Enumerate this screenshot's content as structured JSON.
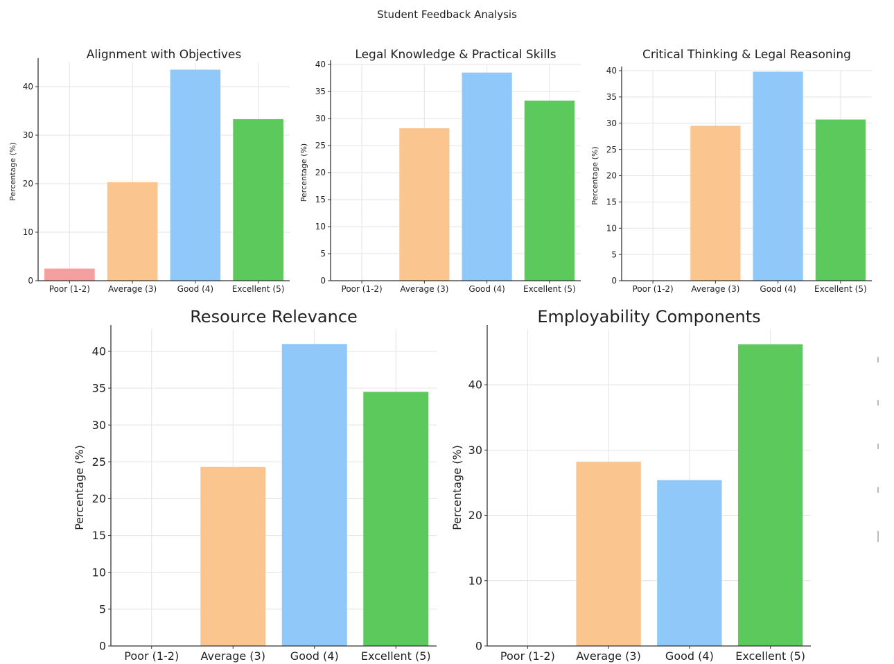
{
  "suptitle": "Student Feedback Analysis",
  "chart_data": [
    {
      "type": "bar",
      "title": "Alignment with Objectives",
      "categories": [
        "Poor (1-2)",
        "Average (3)",
        "Good (4)",
        "Excellent (5)"
      ],
      "values": [
        2.5,
        20.3,
        43.5,
        33.3
      ],
      "xlabel": "",
      "ylabel": "Percentage (%)",
      "ylim": [
        0,
        45
      ],
      "yticks": [
        0,
        10,
        20,
        30,
        40
      ],
      "colors": [
        "#f4a0a0",
        "#fbc58f",
        "#90c8fa",
        "#5cc95c"
      ],
      "grid": true
    },
    {
      "type": "bar",
      "title": "Legal Knowledge & Practical Skills",
      "categories": [
        "Poor (1-2)",
        "Average (3)",
        "Good (4)",
        "Excellent (5)"
      ],
      "values": [
        0,
        28.2,
        38.5,
        33.3
      ],
      "xlabel": "",
      "ylabel": "Percentage (%)",
      "ylim": [
        0,
        40
      ],
      "yticks": [
        0,
        5,
        10,
        15,
        20,
        25,
        30,
        35,
        40
      ],
      "colors": [
        "#f4a0a0",
        "#fbc58f",
        "#90c8fa",
        "#5cc95c"
      ],
      "grid": true
    },
    {
      "type": "bar",
      "title": "Critical Thinking & Legal Reasoning",
      "categories": [
        "Poor (1-2)",
        "Average (3)",
        "Good (4)",
        "Excellent (5)"
      ],
      "values": [
        0,
        29.5,
        39.8,
        30.7
      ],
      "xlabel": "",
      "ylabel": "Percentage (%)",
      "ylim": [
        0,
        40
      ],
      "yticks": [
        0,
        5,
        10,
        15,
        20,
        25,
        30,
        35,
        40
      ],
      "colors": [
        "#f4a0a0",
        "#fbc58f",
        "#90c8fa",
        "#5cc95c"
      ],
      "grid": true
    },
    {
      "type": "bar",
      "title": "Resource Relevance",
      "categories": [
        "Poor (1-2)",
        "Average (3)",
        "Good (4)",
        "Excellent (5)"
      ],
      "values": [
        0,
        24.3,
        41,
        34.5
      ],
      "xlabel": "",
      "ylabel": "Percentage (%)",
      "ylim": [
        0,
        43
      ],
      "yticks": [
        0,
        5,
        10,
        15,
        20,
        25,
        30,
        35,
        40
      ],
      "colors": [
        "#f4a0a0",
        "#fbc58f",
        "#90c8fa",
        "#5cc95c"
      ],
      "grid": true
    },
    {
      "type": "bar",
      "title": "Employability Components",
      "categories": [
        "Poor (1-2)",
        "Average (3)",
        "Good (4)",
        "Excellent (5)"
      ],
      "values": [
        0,
        28.2,
        25.4,
        46.2
      ],
      "xlabel": "",
      "ylabel": "Percentage (%)",
      "ylim": [
        0,
        48.5
      ],
      "yticks": [
        0,
        10,
        20,
        30,
        40
      ],
      "colors": [
        "#f4a0a0",
        "#fbc58f",
        "#90c8fa",
        "#5cc95c"
      ],
      "grid": true
    }
  ]
}
